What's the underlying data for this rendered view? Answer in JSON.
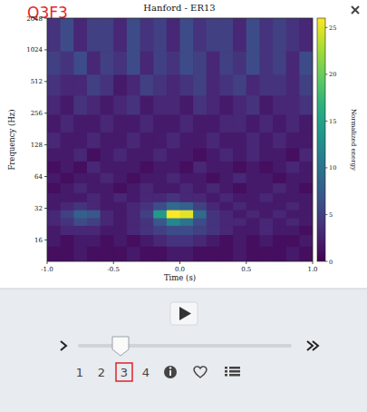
{
  "chart_data": {
    "type": "heatmap",
    "title": "Hanford - ER13",
    "panel_label": "Q3F3",
    "x_label": "Time (s)",
    "y_label": "Frequency (Hz)",
    "log": "y",
    "xlim": [
      -1,
      1
    ],
    "xticks": [
      {
        "value": -1,
        "label": "-1.0"
      },
      {
        "value": -0.5,
        "label": "-0.5"
      },
      {
        "value": 0,
        "label": "0.0"
      },
      {
        "value": 0.5,
        "label": "0.5"
      },
      {
        "value": 1,
        "label": "1.0"
      }
    ],
    "ylim": [
      10,
      2048
    ],
    "yticks": [
      16,
      32,
      64,
      128,
      256,
      512,
      1024,
      2048
    ],
    "time_bins": [
      -1,
      -0.9,
      -0.8,
      -0.7,
      -0.6,
      -0.5,
      -0.4,
      -0.3,
      -0.2,
      -0.1,
      0,
      0.1,
      0.2,
      0.3,
      0.4,
      0.5,
      0.6,
      0.7,
      0.8,
      0.9,
      1
    ],
    "frequency_bins": [
      10,
      14,
      18,
      22,
      26,
      31,
      37,
      45,
      56,
      70,
      90,
      120,
      170,
      250,
      380,
      600,
      1000,
      2048
    ],
    "cells": [
      [
        1,
        1,
        2,
        1,
        1,
        1,
        2,
        1,
        1,
        2,
        2,
        1,
        1,
        1,
        2,
        1,
        1,
        1,
        2,
        1
      ],
      [
        2,
        1,
        2,
        2,
        1,
        2,
        1,
        2,
        3,
        4,
        4,
        3,
        2,
        1,
        2,
        1,
        2,
        1,
        1,
        2
      ],
      [
        2,
        3,
        3,
        3,
        2,
        2,
        3,
        4,
        5,
        6,
        6,
        5,
        4,
        3,
        2,
        2,
        3,
        2,
        2,
        1
      ],
      [
        3,
        4,
        6,
        5,
        3,
        2,
        3,
        4,
        7,
        12,
        10,
        6,
        4,
        3,
        3,
        2,
        3,
        2,
        3,
        2
      ],
      [
        3,
        5,
        8,
        7,
        3,
        2,
        3,
        5,
        14,
        26,
        25,
        9,
        4,
        3,
        2,
        3,
        2,
        3,
        2,
        2
      ],
      [
        2,
        3,
        4,
        3,
        2,
        2,
        3,
        4,
        6,
        9,
        8,
        5,
        3,
        2,
        3,
        2,
        2,
        2,
        3,
        2
      ],
      [
        2,
        2,
        2,
        3,
        2,
        3,
        2,
        3,
        3,
        4,
        3,
        3,
        2,
        3,
        2,
        2,
        3,
        2,
        2,
        2
      ],
      [
        1,
        2,
        3,
        2,
        2,
        1,
        2,
        3,
        2,
        2,
        3,
        2,
        3,
        2,
        1,
        2,
        2,
        3,
        2,
        1
      ],
      [
        2,
        1,
        2,
        2,
        3,
        2,
        1,
        2,
        2,
        3,
        2,
        2,
        1,
        2,
        3,
        2,
        2,
        1,
        2,
        2
      ],
      [
        1,
        2,
        1,
        3,
        2,
        2,
        2,
        1,
        2,
        2,
        1,
        3,
        2,
        2,
        1,
        2,
        1,
        2,
        3,
        2
      ],
      [
        2,
        2,
        3,
        1,
        2,
        3,
        2,
        2,
        3,
        2,
        2,
        1,
        2,
        3,
        2,
        3,
        2,
        2,
        1,
        3
      ],
      [
        3,
        2,
        2,
        3,
        2,
        2,
        3,
        2,
        2,
        3,
        2,
        2,
        3,
        2,
        2,
        3,
        2,
        3,
        2,
        2
      ],
      [
        2,
        3,
        2,
        2,
        3,
        2,
        2,
        3,
        2,
        2,
        3,
        2,
        2,
        3,
        3,
        2,
        3,
        2,
        3,
        2
      ],
      [
        3,
        2,
        4,
        3,
        2,
        3,
        4,
        2,
        3,
        3,
        2,
        4,
        3,
        2,
        3,
        4,
        2,
        3,
        3,
        4
      ],
      [
        4,
        3,
        3,
        5,
        4,
        2,
        3,
        5,
        4,
        3,
        4,
        5,
        3,
        4,
        5,
        3,
        4,
        4,
        3,
        5
      ],
      [
        5,
        4,
        6,
        3,
        5,
        4,
        6,
        3,
        5,
        4,
        6,
        5,
        3,
        5,
        4,
        6,
        4,
        5,
        3,
        6
      ],
      [
        4,
        6,
        3,
        5,
        5,
        3,
        6,
        4,
        5,
        3,
        6,
        4,
        5,
        5,
        3,
        6,
        4,
        5,
        4,
        3
      ]
    ],
    "colorbar": {
      "label": "Normalized energy",
      "range": [
        0,
        26
      ],
      "ticks": [
        0,
        5,
        10,
        15,
        20,
        25
      ]
    }
  },
  "controls": {
    "pages": [
      "1",
      "2",
      "3",
      "4"
    ],
    "selected_page": "3"
  }
}
